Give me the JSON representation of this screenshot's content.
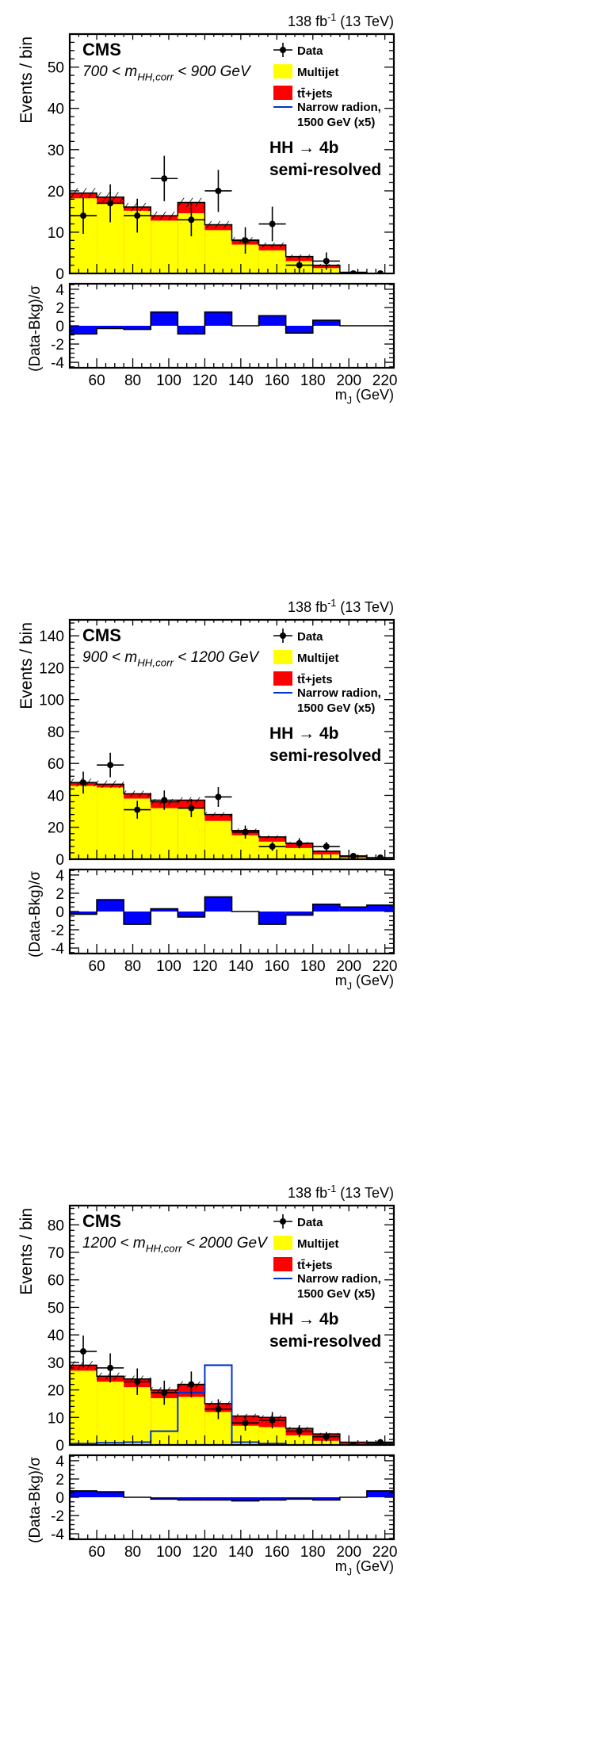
{
  "chart_data": [
    {
      "type": "bar",
      "stacked": true,
      "lumi_label": "138 fb",
      "lumi_sup": "-1",
      "energy_label": "(13 TeV)",
      "cms_label": "CMS",
      "mass_range_prefix": "700 < m",
      "mass_range_sub": "HH,corr",
      "mass_range_suffix": " < 900 GeV",
      "channel_line1": "HH → 4b",
      "channel_line2": "semi-resolved",
      "ylabel": "Events / bin",
      "ratio_ylabel": "(Data-Bkg)/σ",
      "xlabel_prefix": "m",
      "xlabel_sub": "J",
      "xlabel_suffix": " (GeV)",
      "xlim": [
        45,
        225
      ],
      "ylim": [
        0,
        58
      ],
      "ratio_ylim": [
        -4.6,
        4.6
      ],
      "yticks": [
        "0",
        "10",
        "20",
        "30",
        "40",
        "50"
      ],
      "ratio_yticks": [
        "-4",
        "-2",
        "0",
        "2",
        "4"
      ],
      "xticks": [
        "60",
        "80",
        "100",
        "120",
        "140",
        "160",
        "180",
        "200",
        "220"
      ],
      "legend": {
        "data": "Data",
        "multijet": "Multijet",
        "ttbar": "tt̄+jets",
        "signal_line1": "Narrow radion,",
        "signal_line2": "1500 GeV (x5)"
      },
      "bin_edges": [
        45,
        60,
        75,
        90,
        105,
        120,
        135,
        150,
        165,
        180,
        195,
        210,
        225
      ],
      "series": [
        {
          "name": "Multijet",
          "values": [
            18.2,
            17.0,
            15.2,
            12.8,
            14.6,
            10.5,
            7.0,
            5.6,
            3.0,
            1.3,
            0.2,
            0.0
          ]
        },
        {
          "name": "tt+jets",
          "values": [
            1.3,
            1.5,
            0.9,
            1.2,
            2.6,
            1.3,
            1.1,
            1.3,
            1.1,
            0.7,
            0.1,
            0.0
          ]
        },
        {
          "name": "Narrow radion, 1500 GeV (x5)",
          "values": [
            0,
            0,
            0,
            0,
            0,
            0,
            0,
            0,
            0,
            0,
            0,
            0
          ]
        }
      ],
      "bkg_unc": [
        1.2,
        1.2,
        1.0,
        1.0,
        1.1,
        0.9,
        0.7,
        0.6,
        0.5,
        0.3,
        0.0,
        0.0
      ],
      "data": [
        14,
        17,
        14,
        23,
        13,
        20,
        8,
        12,
        2,
        3,
        0,
        0
      ],
      "data_err": [
        4.4,
        4.6,
        4.1,
        5.5,
        4.0,
        5.1,
        3.2,
        4.2,
        1.9,
        2.1,
        0.0,
        0.0
      ],
      "pulls": [
        -0.9,
        -0.3,
        -0.4,
        1.5,
        -0.9,
        1.5,
        0.0,
        1.1,
        -0.8,
        0.6,
        0.0,
        0.0
      ]
    },
    {
      "type": "bar",
      "stacked": true,
      "lumi_label": "138 fb",
      "lumi_sup": "-1",
      "energy_label": "(13 TeV)",
      "cms_label": "CMS",
      "mass_range_prefix": "900 < m",
      "mass_range_sub": "HH,corr",
      "mass_range_suffix": " < 1200 GeV",
      "channel_line1": "HH → 4b",
      "channel_line2": "semi-resolved",
      "ylabel": "Events / bin",
      "ratio_ylabel": "(Data-Bkg)/σ",
      "xlabel_prefix": "m",
      "xlabel_sub": "J",
      "xlabel_suffix": " (GeV)",
      "xlim": [
        45,
        225
      ],
      "ylim": [
        0,
        150
      ],
      "ratio_ylim": [
        -4.6,
        4.6
      ],
      "yticks": [
        "0",
        "20",
        "40",
        "60",
        "80",
        "100",
        "120",
        "140"
      ],
      "ratio_yticks": [
        "-4",
        "-2",
        "0",
        "2",
        "4"
      ],
      "xticks": [
        "60",
        "80",
        "100",
        "120",
        "140",
        "160",
        "180",
        "200",
        "220"
      ],
      "legend": {
        "data": "Data",
        "multijet": "Multijet",
        "ttbar": "tt̄+jets",
        "signal_line1": "Narrow radion,",
        "signal_line2": "1500 GeV (x5)"
      },
      "bin_edges": [
        45,
        60,
        75,
        90,
        105,
        120,
        135,
        150,
        165,
        180,
        195,
        210,
        225
      ],
      "series": [
        {
          "name": "Multijet",
          "values": [
            46,
            45,
            38,
            32,
            32,
            24,
            15,
            11,
            7,
            3,
            1,
            0
          ]
        },
        {
          "name": "tt+jets",
          "values": [
            2,
            2,
            3,
            4,
            5,
            4,
            3,
            3,
            3,
            2,
            1,
            0
          ]
        },
        {
          "name": "Narrow radion, 1500 GeV (x5)",
          "values": [
            0,
            0,
            0,
            0,
            0,
            0,
            0,
            0,
            0,
            0,
            0,
            0
          ]
        }
      ],
      "bkg_unc": [
        2.5,
        2.3,
        2.0,
        1.8,
        1.8,
        1.5,
        1.2,
        1.0,
        0.8,
        0.5,
        0.3,
        0.0
      ],
      "data": [
        48,
        59,
        31,
        37,
        32,
        39,
        17,
        8,
        10,
        8,
        2,
        1
      ],
      "data_err": [
        6.9,
        7.7,
        5.6,
        6.1,
        5.7,
        6.2,
        4.1,
        2.8,
        3.2,
        2.8,
        1.4,
        1.0
      ],
      "pulls": [
        -0.3,
        1.3,
        -1.4,
        0.3,
        -0.6,
        1.6,
        0.0,
        -1.4,
        -0.4,
        0.8,
        0.5,
        0.7
      ]
    },
    {
      "type": "bar",
      "stacked": true,
      "lumi_label": "138 fb",
      "lumi_sup": "-1",
      "energy_label": "(13 TeV)",
      "cms_label": "CMS",
      "mass_range_prefix": "1200 < m",
      "mass_range_sub": "HH,corr",
      "mass_range_suffix": " < 2000 GeV",
      "channel_line1": "HH → 4b",
      "channel_line2": "semi-resolved",
      "ylabel": "Events / bin",
      "ratio_ylabel": "(Data-Bkg)/σ",
      "xlabel_prefix": "m",
      "xlabel_sub": "J",
      "xlabel_suffix": " (GeV)",
      "xlim": [
        45,
        225
      ],
      "ylim": [
        0,
        87
      ],
      "ratio_ylim": [
        -4.6,
        4.6
      ],
      "yticks": [
        "0",
        "10",
        "20",
        "30",
        "40",
        "50",
        "60",
        "70",
        "80"
      ],
      "ratio_yticks": [
        "-4",
        "-2",
        "0",
        "2",
        "4"
      ],
      "xticks": [
        "60",
        "80",
        "100",
        "120",
        "140",
        "160",
        "180",
        "200",
        "220"
      ],
      "legend": {
        "data": "Data",
        "multijet": "Multijet",
        "ttbar": "tt̄+jets",
        "signal_line1": "Narrow radion,",
        "signal_line2": "1500 GeV (x5)"
      },
      "bin_edges": [
        45,
        60,
        75,
        90,
        105,
        120,
        135,
        150,
        165,
        180,
        195,
        210,
        225
      ],
      "series": [
        {
          "name": "Multijet",
          "values": [
            27,
            23,
            21,
            17,
            17.5,
            12,
            7,
            6.5,
            3.5,
            1.5,
            0.3,
            0.2
          ]
        },
        {
          "name": "tt+jets",
          "values": [
            2,
            2,
            3,
            3,
            4.5,
            3,
            3.5,
            3.5,
            2.5,
            2.5,
            0.7,
            0.5
          ]
        },
        {
          "name": "Narrow radion, 1500 GeV (x5)",
          "values": [
            0.5,
            0.8,
            1.0,
            5.0,
            19.0,
            29.0,
            1.0,
            0.5,
            0.0,
            0.0,
            0.0,
            0.0
          ]
        }
      ],
      "bkg_unc": [
        1.5,
        1.3,
        1.2,
        1.0,
        1.1,
        0.9,
        0.8,
        0.8,
        0.6,
        0.4,
        0.2,
        0.1
      ],
      "data": [
        34,
        28,
        23,
        19,
        22,
        13,
        8,
        9,
        5,
        3,
        0,
        1
      ],
      "data_err": [
        5.8,
        5.3,
        4.8,
        4.4,
        4.7,
        3.6,
        2.8,
        3.0,
        2.2,
        1.7,
        0.0,
        1.0
      ],
      "pulls": [
        0.7,
        0.6,
        0.0,
        -0.2,
        -0.3,
        -0.3,
        -0.4,
        -0.3,
        -0.2,
        -0.3,
        0.0,
        0.7
      ]
    }
  ],
  "colors": {
    "multijet": "#ffff00",
    "ttbar": "#ff0000",
    "signal": "#0033cc",
    "pull": "#0000ff",
    "data": "#000000"
  }
}
